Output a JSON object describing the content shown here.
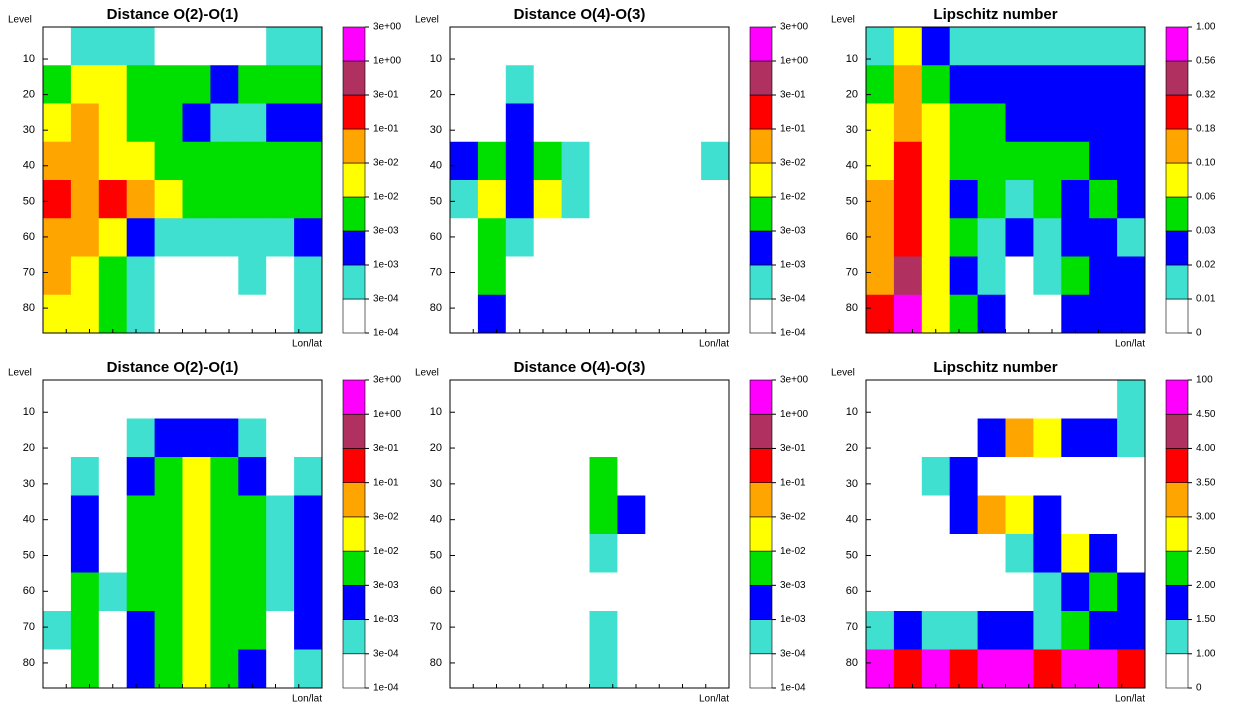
{
  "chart_data": [
    {
      "type": "contour",
      "title": "Distance O(2)-O(1)",
      "ylabel": "Level",
      "xlabel": "Lon/lat",
      "ylim": [
        1,
        87
      ],
      "yticks": [
        10,
        20,
        30,
        40,
        50,
        60,
        70,
        80
      ],
      "colorbar": {
        "colors": [
          "#ffffff",
          "#40e0d0",
          "#0000ff",
          "#00e000",
          "#ffff00",
          "#ffa500",
          "#ff0000",
          "#b03060",
          "#ff00ff"
        ],
        "ticks": [
          {
            "value": 0.0001,
            "label": "1e-04"
          },
          {
            "value": 0.0003,
            "label": "3e-04"
          },
          {
            "value": 0.001,
            "label": "1e-03"
          },
          {
            "value": 0.003,
            "label": "3e-03"
          },
          {
            "value": 0.01,
            "label": "1e-02"
          },
          {
            "value": 0.03,
            "label": "3e-02"
          },
          {
            "value": 0.1,
            "label": "1e-01"
          },
          {
            "value": 0.3,
            "label": "3e-01"
          },
          {
            "value": 1,
            "label": "1e+00"
          },
          {
            "value": 3,
            "label": "3e+00"
          }
        ]
      },
      "z": [
        [
          0.0001,
          0.0005,
          0.0005,
          0.0005,
          0.0001,
          0.0001,
          0.0001,
          0.0001,
          0.0005,
          0.0005
        ],
        [
          0.005,
          0.02,
          0.02,
          0.005,
          0.005,
          0.005,
          0.002,
          0.005,
          0.005,
          0.005
        ],
        [
          0.02,
          0.05,
          0.02,
          0.005,
          0.005,
          0.002,
          0.0005,
          0.0005,
          0.002,
          0.002
        ],
        [
          0.05,
          0.05,
          0.02,
          0.02,
          0.005,
          0.005,
          0.005,
          0.005,
          0.005,
          0.005
        ],
        [
          0.2,
          0.05,
          0.2,
          0.05,
          0.02,
          0.005,
          0.005,
          0.005,
          0.005,
          0.005
        ],
        [
          0.05,
          0.05,
          0.02,
          0.002,
          0.0005,
          0.0005,
          0.0005,
          0.0005,
          0.0005,
          0.002
        ],
        [
          0.05,
          0.02,
          0.005,
          0.0005,
          0.0001,
          0.0001,
          0.0001,
          0.0005,
          0.0001,
          0.0005
        ],
        [
          0.02,
          0.02,
          0.005,
          0.0005,
          0.0001,
          0.0001,
          0.0001,
          0.0001,
          0.0001,
          0.0005
        ]
      ]
    },
    {
      "type": "contour",
      "title": "Distance O(4)-O(3)",
      "ylabel": "Level",
      "xlabel": "Lon/lat",
      "ylim": [
        1,
        87
      ],
      "yticks": [
        10,
        20,
        30,
        40,
        50,
        60,
        70,
        80
      ],
      "colorbar": {
        "colors": [
          "#ffffff",
          "#40e0d0",
          "#0000ff",
          "#00e000",
          "#ffff00",
          "#ffa500",
          "#ff0000",
          "#b03060",
          "#ff00ff"
        ],
        "ticks": [
          {
            "value": 0.0001,
            "label": "1e-04"
          },
          {
            "value": 0.0003,
            "label": "3e-04"
          },
          {
            "value": 0.001,
            "label": "1e-03"
          },
          {
            "value": 0.003,
            "label": "3e-03"
          },
          {
            "value": 0.01,
            "label": "1e-02"
          },
          {
            "value": 0.03,
            "label": "3e-02"
          },
          {
            "value": 0.1,
            "label": "1e-01"
          },
          {
            "value": 0.3,
            "label": "3e-01"
          },
          {
            "value": 1,
            "label": "1e+00"
          },
          {
            "value": 3,
            "label": "3e+00"
          }
        ]
      },
      "z": [
        [
          0.0001,
          0.0001,
          0.0001,
          0.0001,
          0.0001,
          0.0001,
          0.0001,
          0.0001,
          0.0001,
          0.0001
        ],
        [
          0.0001,
          0.0001,
          0.0005,
          0.0001,
          0.0001,
          0.0001,
          0.0001,
          0.0001,
          0.0001,
          0.0001
        ],
        [
          0.0001,
          0.0001,
          0.002,
          0.0001,
          0.0001,
          0.0001,
          0.0001,
          0.0001,
          0.0001,
          0.0001
        ],
        [
          0.002,
          0.005,
          0.002,
          0.005,
          0.0005,
          0.0001,
          0.0001,
          0.0001,
          0.0001,
          0.0005
        ],
        [
          0.0005,
          0.02,
          0.002,
          0.02,
          0.0005,
          0.0001,
          0.0001,
          0.0001,
          0.0001,
          0.0001
        ],
        [
          0.0001,
          0.005,
          0.0005,
          0.0001,
          0.0001,
          0.0001,
          0.0001,
          0.0001,
          0.0001,
          0.0001
        ],
        [
          0.0001,
          0.005,
          0.0001,
          0.0001,
          0.0001,
          0.0001,
          0.0001,
          0.0001,
          0.0001,
          0.0001
        ],
        [
          0.0001,
          0.002,
          0.0001,
          0.0001,
          0.0001,
          0.0001,
          0.0001,
          0.0001,
          0.0001,
          0.0001
        ]
      ]
    },
    {
      "type": "contour",
      "title": "Lipschitz number",
      "ylabel": "Level",
      "xlabel": "Lon/lat",
      "ylim": [
        1,
        87
      ],
      "yticks": [
        10,
        20,
        30,
        40,
        50,
        60,
        70,
        80
      ],
      "colorbar": {
        "colors": [
          "#ffffff",
          "#40e0d0",
          "#0000ff",
          "#00e000",
          "#ffff00",
          "#ffa500",
          "#ff0000",
          "#b03060",
          "#ff00ff"
        ],
        "ticks": [
          0,
          0.01,
          0.02,
          0.03,
          0.06,
          {
            "value": 0.1,
            "label": "0.10"
          },
          0.18,
          0.32,
          0.56,
          {
            "value": 1,
            "label": "1.00"
          }
        ]
      },
      "z": [
        [
          0.015,
          0.08,
          0.025,
          0.015,
          0.015,
          0.015,
          0.015,
          0.015,
          0.015,
          0.015
        ],
        [
          0.04,
          0.14,
          0.04,
          0.025,
          0.025,
          0.025,
          0.025,
          0.025,
          0.025,
          0.025
        ],
        [
          0.08,
          0.14,
          0.08,
          0.04,
          0.04,
          0.025,
          0.025,
          0.025,
          0.025,
          0.025
        ],
        [
          0.08,
          0.25,
          0.08,
          0.04,
          0.04,
          0.04,
          0.04,
          0.04,
          0.025,
          0.025
        ],
        [
          0.14,
          0.25,
          0.08,
          0.025,
          0.04,
          0.015,
          0.04,
          0.025,
          0.04,
          0.025
        ],
        [
          0.14,
          0.25,
          0.08,
          0.04,
          0.015,
          0.025,
          0.015,
          0.025,
          0.025,
          0.015
        ],
        [
          0.14,
          0.4,
          0.08,
          0.025,
          0.015,
          0.005,
          0.015,
          0.04,
          0.025,
          0.025
        ],
        [
          0.25,
          0.8,
          0.08,
          0.04,
          0.025,
          0.005,
          0.005,
          0.025,
          0.025,
          0.025
        ]
      ]
    },
    {
      "type": "contour",
      "title": "Distance O(2)-O(1)",
      "ylabel": "Level",
      "xlabel": "Lon/lat",
      "ylim": [
        1,
        87
      ],
      "yticks": [
        10,
        20,
        30,
        40,
        50,
        60,
        70,
        80
      ],
      "colorbar": {
        "colors": [
          "#ffffff",
          "#40e0d0",
          "#0000ff",
          "#00e000",
          "#ffff00",
          "#ffa500",
          "#ff0000",
          "#b03060",
          "#ff00ff"
        ],
        "ticks": [
          {
            "value": 0.0001,
            "label": "1e-04"
          },
          {
            "value": 0.0003,
            "label": "3e-04"
          },
          {
            "value": 0.001,
            "label": "1e-03"
          },
          {
            "value": 0.003,
            "label": "3e-03"
          },
          {
            "value": 0.01,
            "label": "1e-02"
          },
          {
            "value": 0.03,
            "label": "3e-02"
          },
          {
            "value": 0.1,
            "label": "1e-01"
          },
          {
            "value": 0.3,
            "label": "3e-01"
          },
          {
            "value": 1,
            "label": "1e+00"
          },
          {
            "value": 3,
            "label": "3e+00"
          }
        ]
      },
      "z": [
        [
          0.0001,
          0.0001,
          0.0001,
          0.0001,
          0.0001,
          0.0001,
          0.0001,
          0.0001,
          0.0001,
          0.0001
        ],
        [
          0.0001,
          0.0001,
          0.0001,
          0.0005,
          0.002,
          0.002,
          0.002,
          0.0005,
          0.0001,
          0.0001
        ],
        [
          0.0001,
          0.0005,
          0.0001,
          0.002,
          0.005,
          0.02,
          0.005,
          0.002,
          0.0001,
          0.0005
        ],
        [
          0.0001,
          0.002,
          0.0001,
          0.005,
          0.005,
          0.02,
          0.005,
          0.005,
          0.0005,
          0.002
        ],
        [
          0.0001,
          0.002,
          0.0001,
          0.005,
          0.005,
          0.02,
          0.005,
          0.005,
          0.0005,
          0.002
        ],
        [
          0.0001,
          0.005,
          0.0005,
          0.005,
          0.005,
          0.02,
          0.005,
          0.005,
          0.0005,
          0.002
        ],
        [
          0.0005,
          0.005,
          0.0001,
          0.002,
          0.005,
          0.02,
          0.005,
          0.005,
          0.0001,
          0.002
        ],
        [
          0.0001,
          0.005,
          0.0001,
          0.002,
          0.005,
          0.02,
          0.005,
          0.002,
          0.0001,
          0.0005
        ]
      ]
    },
    {
      "type": "contour",
      "title": "Distance O(4)-O(3)",
      "ylabel": "Level",
      "xlabel": "Lon/lat",
      "ylim": [
        1,
        87
      ],
      "yticks": [
        10,
        20,
        30,
        40,
        50,
        60,
        70,
        80
      ],
      "colorbar": {
        "colors": [
          "#ffffff",
          "#40e0d0",
          "#0000ff",
          "#00e000",
          "#ffff00",
          "#ffa500",
          "#ff0000",
          "#b03060",
          "#ff00ff"
        ],
        "ticks": [
          {
            "value": 0.0001,
            "label": "1e-04"
          },
          {
            "value": 0.0003,
            "label": "3e-04"
          },
          {
            "value": 0.001,
            "label": "1e-03"
          },
          {
            "value": 0.003,
            "label": "3e-03"
          },
          {
            "value": 0.01,
            "label": "1e-02"
          },
          {
            "value": 0.03,
            "label": "3e-02"
          },
          {
            "value": 0.1,
            "label": "1e-01"
          },
          {
            "value": 0.3,
            "label": "3e-01"
          },
          {
            "value": 1,
            "label": "1e+00"
          },
          {
            "value": 3,
            "label": "3e+00"
          }
        ]
      },
      "z": [
        [
          0.0001,
          0.0001,
          0.0001,
          0.0001,
          0.0001,
          0.0001,
          0.0001,
          0.0001,
          0.0001,
          0.0001
        ],
        [
          0.0001,
          0.0001,
          0.0001,
          0.0001,
          0.0001,
          0.0001,
          0.0001,
          0.0001,
          0.0001,
          0.0001
        ],
        [
          0.0001,
          0.0001,
          0.0001,
          0.0001,
          0.0001,
          0.005,
          0.0001,
          0.0001,
          0.0001,
          0.0001
        ],
        [
          0.0001,
          0.0001,
          0.0001,
          0.0001,
          0.0001,
          0.005,
          0.002,
          0.0001,
          0.0001,
          0.0001
        ],
        [
          0.0001,
          0.0001,
          0.0001,
          0.0001,
          0.0001,
          0.0005,
          0.0001,
          0.0001,
          0.0001,
          0.0001
        ],
        [
          0.0001,
          0.0001,
          0.0001,
          0.0001,
          0.0001,
          0.0001,
          0.0001,
          0.0001,
          0.0001,
          0.0001
        ],
        [
          0.0001,
          0.0001,
          0.0001,
          0.0001,
          0.0001,
          0.0005,
          0.0001,
          0.0001,
          0.0001,
          0.0001
        ],
        [
          0.0001,
          0.0001,
          0.0001,
          0.0001,
          0.0001,
          0.0005,
          0.0001,
          0.0001,
          0.0001,
          0.0001
        ]
      ]
    },
    {
      "type": "contour",
      "title": "Lipschitz number",
      "ylabel": "Level",
      "xlabel": "Lon/lat",
      "ylim": [
        1,
        87
      ],
      "yticks": [
        10,
        20,
        30,
        40,
        50,
        60,
        70,
        80
      ],
      "colorbar": {
        "colors": [
          "#ffffff",
          "#40e0d0",
          "#0000ff",
          "#00e000",
          "#ffff00",
          "#ffa500",
          "#ff0000",
          "#b03060",
          "#ff00ff"
        ],
        "ticks": [
          0,
          {
            "value": 1,
            "label": "1.00"
          },
          {
            "value": 1.5,
            "label": "1.50"
          },
          {
            "value": 2,
            "label": "2.00"
          },
          {
            "value": 2.5,
            "label": "2.50"
          },
          {
            "value": 3,
            "label": "3.00"
          },
          {
            "value": 3.5,
            "label": "3.50"
          },
          {
            "value": 4,
            "label": "4.00"
          },
          {
            "value": 4.5,
            "label": "4.50"
          },
          100
        ]
      },
      "z": [
        [
          0.5,
          0.5,
          0.5,
          0.5,
          0.5,
          0.5,
          0.5,
          0.5,
          0.5,
          1.2
        ],
        [
          0.5,
          0.5,
          0.5,
          0.5,
          1.7,
          3.2,
          2.7,
          1.7,
          1.7,
          1.2
        ],
        [
          0.5,
          0.5,
          1.2,
          1.7,
          0.5,
          0.5,
          0.5,
          0.5,
          0.5,
          0.5
        ],
        [
          0.5,
          0.5,
          0.5,
          1.7,
          3.2,
          2.7,
          1.7,
          0.5,
          0.5,
          0.5
        ],
        [
          0.5,
          0.5,
          0.5,
          0.5,
          0.5,
          1.2,
          1.7,
          2.7,
          1.7,
          0.5
        ],
        [
          0.5,
          0.5,
          0.5,
          0.5,
          0.5,
          0.5,
          1.2,
          1.7,
          2.2,
          1.7
        ],
        [
          1.2,
          1.7,
          1.2,
          1.2,
          1.7,
          1.7,
          1.2,
          2.2,
          1.7,
          1.7
        ],
        [
          50,
          3.7,
          50,
          3.7,
          50,
          50,
          3.7,
          50,
          50,
          3.7
        ]
      ]
    }
  ]
}
